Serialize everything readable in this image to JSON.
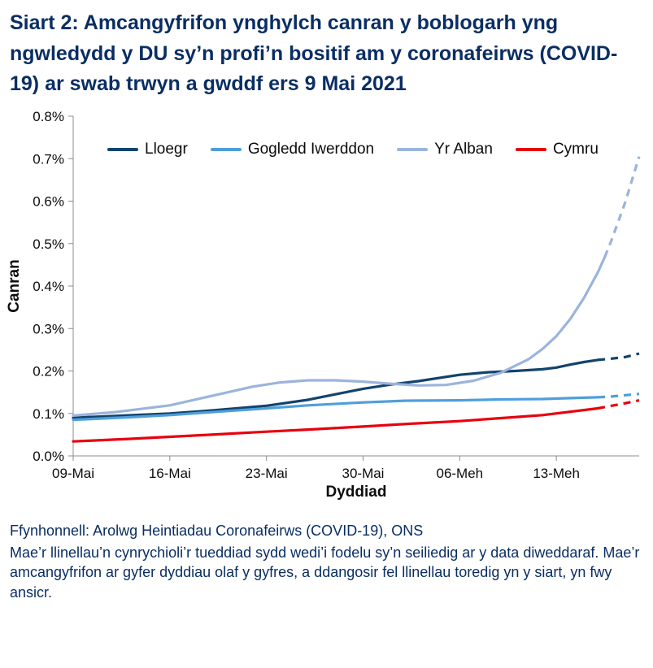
{
  "title": "Siart 2: Amcangyfrifon ynghylch canran y boblogarh yng ngwledydd y DU sy’n profi’n bositif am y coronafeirws (COVID-19) ar swab trwyn a gwddf ers 9 Mai 2021",
  "footer": {
    "source": "Ffynhonnell: Arolwg Heintiadau Coronafeirws (COVID-19), ONS",
    "note": "Mae’r llinellau’n cynrychioli’r tueddiad sydd wedi’i fodelu sy’n seiliedig ar y data diweddaraf. Mae’r amcangyfrifon ar gyfer dyddiau olaf y gyfres, a ddangosir fel llinellau toredig yn y siart, yn fwy ansicr."
  },
  "colors": {
    "title_text": "#0a2e63",
    "axis": "#8c8c8c",
    "tick_text": "#0b0c0c"
  },
  "chart_data": {
    "type": "line",
    "title": "",
    "xlabel": "Dyddiad",
    "ylabel": "Canran",
    "ylim": [
      0,
      0.8
    ],
    "xlim_days": [
      0,
      41
    ],
    "grid": false,
    "legend_position": "top-inside",
    "dashed_note": "llinellau toredig = amcangyfrifon mwy ansicr ar gyfer dyddiau olaf y gyfres",
    "y_ticks": [
      {
        "value": 0.0,
        "label": "0.0%"
      },
      {
        "value": 0.1,
        "label": "0.1%"
      },
      {
        "value": 0.2,
        "label": "0.2%"
      },
      {
        "value": 0.3,
        "label": "0.3%"
      },
      {
        "value": 0.4,
        "label": "0.4%"
      },
      {
        "value": 0.5,
        "label": "0.5%"
      },
      {
        "value": 0.6,
        "label": "0.6%"
      },
      {
        "value": 0.7,
        "label": "0.7%"
      },
      {
        "value": 0.8,
        "label": "0.8%"
      }
    ],
    "x_ticks": [
      {
        "day": 0,
        "label": "09-Mai"
      },
      {
        "day": 7,
        "label": "16-Mai"
      },
      {
        "day": 14,
        "label": "23-Mai"
      },
      {
        "day": 21,
        "label": "30-Mai"
      },
      {
        "day": 28,
        "label": "06-Meh"
      },
      {
        "day": 35,
        "label": "13-Meh"
      }
    ],
    "series": [
      {
        "name": "Lloegr",
        "color": "#12436D",
        "solid": [
          [
            0,
            0.09
          ],
          [
            3,
            0.094
          ],
          [
            7,
            0.1
          ],
          [
            10,
            0.107
          ],
          [
            14,
            0.118
          ],
          [
            17,
            0.132
          ],
          [
            19,
            0.145
          ],
          [
            21,
            0.158
          ],
          [
            23,
            0.168
          ],
          [
            25,
            0.176
          ],
          [
            28,
            0.191
          ],
          [
            30,
            0.197
          ],
          [
            32,
            0.2
          ],
          [
            34,
            0.204
          ],
          [
            35,
            0.208
          ],
          [
            36,
            0.215
          ],
          [
            37,
            0.221
          ],
          [
            38,
            0.226
          ]
        ],
        "dashed": [
          [
            38,
            0.226
          ],
          [
            39,
            0.229
          ],
          [
            40,
            0.233
          ],
          [
            41,
            0.241
          ]
        ]
      },
      {
        "name": "Gogledd Iwerddon",
        "color": "#4f9fda",
        "solid": [
          [
            0,
            0.085
          ],
          [
            4,
            0.091
          ],
          [
            7,
            0.096
          ],
          [
            10,
            0.103
          ],
          [
            14,
            0.112
          ],
          [
            17,
            0.119
          ],
          [
            21,
            0.126
          ],
          [
            24,
            0.13
          ],
          [
            28,
            0.131
          ],
          [
            31,
            0.133
          ],
          [
            34,
            0.134
          ],
          [
            36,
            0.136
          ],
          [
            38,
            0.138
          ]
        ],
        "dashed": [
          [
            38,
            0.138
          ],
          [
            39,
            0.14
          ],
          [
            40,
            0.143
          ],
          [
            41,
            0.146
          ]
        ]
      },
      {
        "name": "Yr Alban",
        "color": "#9bb4dc",
        "solid": [
          [
            0,
            0.095
          ],
          [
            3,
            0.103
          ],
          [
            7,
            0.119
          ],
          [
            10,
            0.141
          ],
          [
            13,
            0.163
          ],
          [
            15,
            0.173
          ],
          [
            17,
            0.178
          ],
          [
            19,
            0.178
          ],
          [
            21,
            0.175
          ],
          [
            23,
            0.17
          ],
          [
            25,
            0.166
          ],
          [
            27,
            0.167
          ],
          [
            29,
            0.177
          ],
          [
            31,
            0.196
          ],
          [
            33,
            0.228
          ],
          [
            34,
            0.252
          ],
          [
            35,
            0.282
          ],
          [
            36,
            0.322
          ],
          [
            37,
            0.372
          ],
          [
            38,
            0.432
          ],
          [
            38.5,
            0.468
          ]
        ],
        "dashed": [
          [
            38.5,
            0.468
          ],
          [
            39,
            0.508
          ],
          [
            40,
            0.598
          ],
          [
            41,
            0.705
          ]
        ]
      },
      {
        "name": "Cymru",
        "color": "#e8000d",
        "solid": [
          [
            0,
            0.034
          ],
          [
            4,
            0.04
          ],
          [
            7,
            0.045
          ],
          [
            10,
            0.05
          ],
          [
            14,
            0.057
          ],
          [
            17,
            0.062
          ],
          [
            21,
            0.069
          ],
          [
            24,
            0.075
          ],
          [
            28,
            0.082
          ],
          [
            31,
            0.089
          ],
          [
            34,
            0.096
          ],
          [
            36,
            0.104
          ],
          [
            38,
            0.112
          ]
        ],
        "dashed": [
          [
            38,
            0.112
          ],
          [
            39,
            0.118
          ],
          [
            40,
            0.124
          ],
          [
            41,
            0.131
          ]
        ]
      }
    ]
  }
}
